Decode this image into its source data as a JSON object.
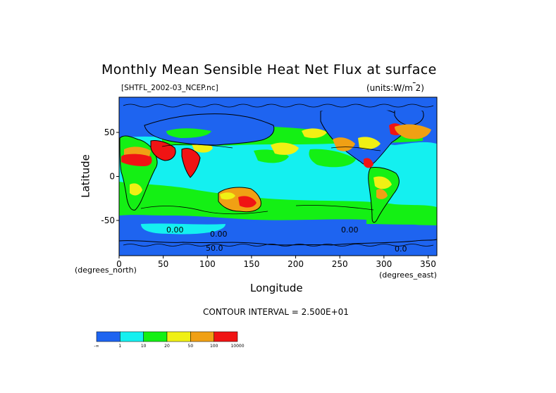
{
  "chart_data": {
    "type": "heatmap",
    "title": "Monthly Mean Sensible Heat Net Flux at surface",
    "file_label": "[SHTFL_2002-03_NCEP.nc]",
    "units_label": "(units:W/m^2)",
    "xlabel": "Longitude",
    "ylabel": "Latitude",
    "x_unit_label": "(degrees_east)",
    "y_unit_label": "(degrees_north)",
    "xlim": [
      0,
      360
    ],
    "ylim": [
      -90,
      90
    ],
    "x_ticks": [
      0,
      50,
      100,
      150,
      200,
      250,
      300,
      350
    ],
    "y_ticks": [
      50,
      0,
      -50
    ],
    "contour_interval": "CONTOUR INTERVAL = 2.500E+01",
    "contour_labels": [
      "0.00",
      "0.00",
      "0.00",
      "50.0",
      "0.0"
    ],
    "colorbar": {
      "colors": [
        "#1e64f0",
        "#14f0f0",
        "#14f014",
        "#f0f014",
        "#f0a014",
        "#f01414"
      ],
      "labels": [
        "-∞",
        "1",
        "10",
        "20",
        "50",
        "100",
        "10000"
      ]
    }
  }
}
